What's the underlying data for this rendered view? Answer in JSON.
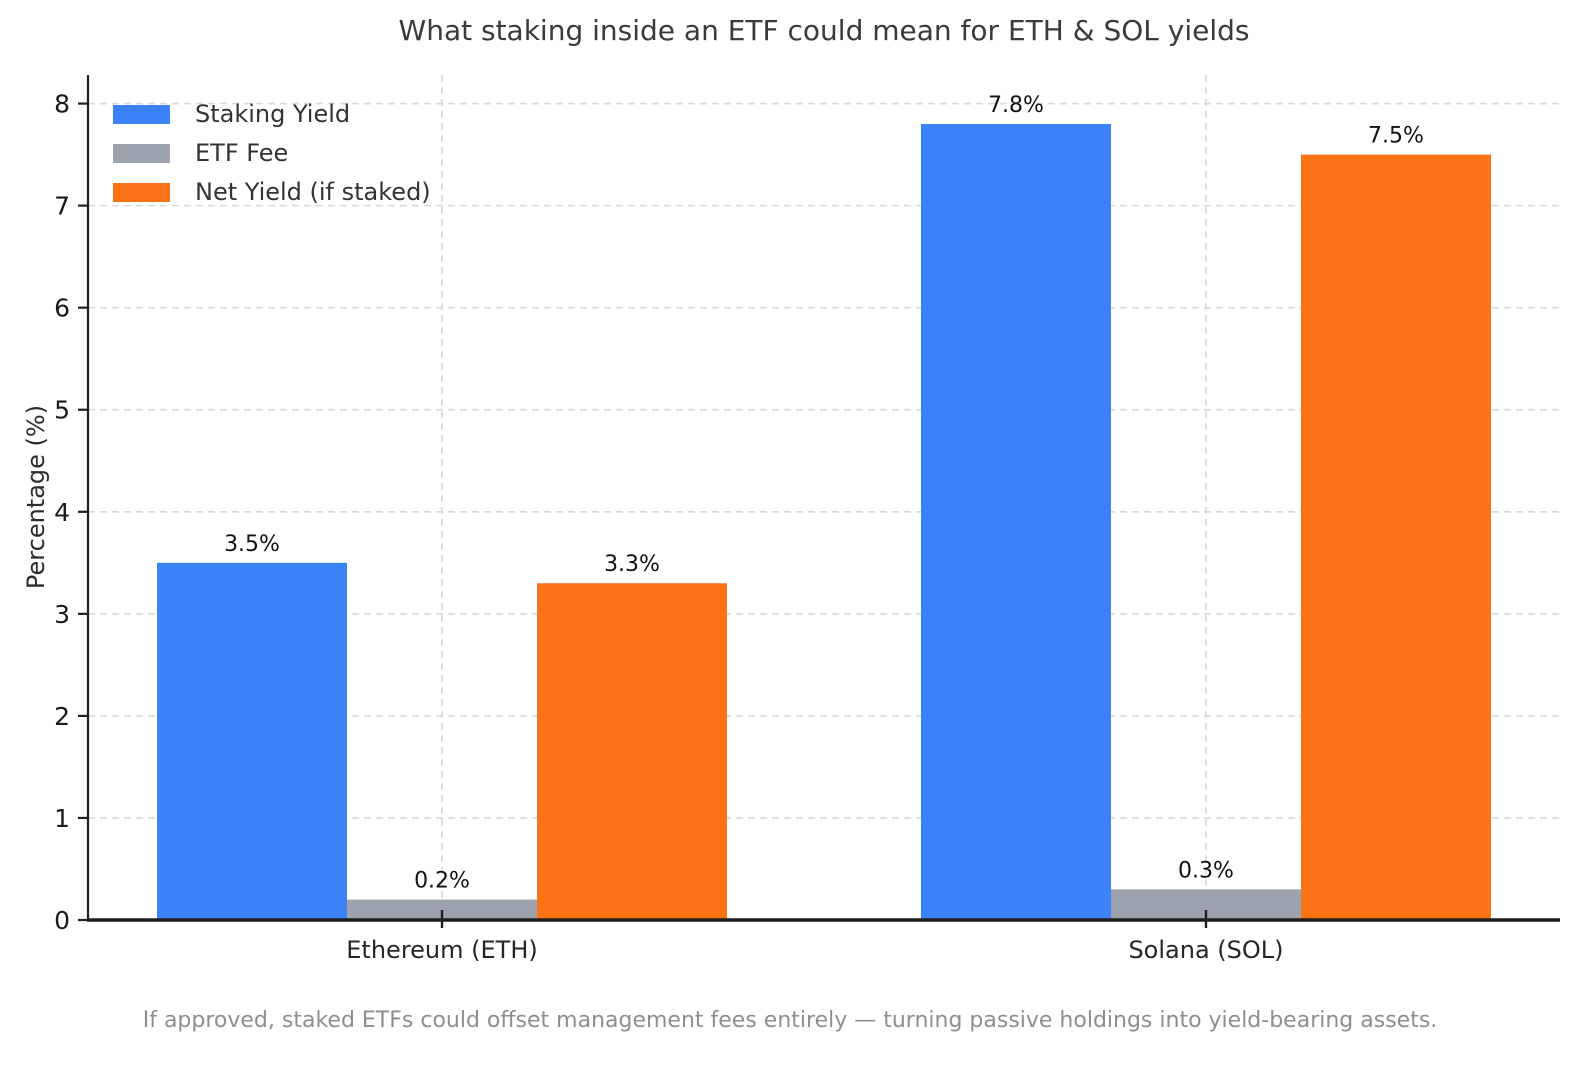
{
  "chart_data": {
    "type": "bar",
    "title": "What staking inside an ETF could mean for ETH & SOL yields",
    "ylabel": "Percentage (%)",
    "xlabel": "",
    "categories": [
      "Ethereum (ETH)",
      "Solana (SOL)"
    ],
    "series": [
      {
        "name": "Staking Yield",
        "color": "#3B82F6",
        "values": [
          3.5,
          7.8
        ],
        "value_labels": [
          "3.5%",
          "7.8%"
        ]
      },
      {
        "name": "ETF Fee",
        "color": "#9CA3AF",
        "values": [
          0.2,
          0.3
        ],
        "value_labels": [
          "0.2%",
          "0.3%"
        ]
      },
      {
        "name": "Net Yield (if staked)",
        "color": "#F97316",
        "values": [
          3.3,
          7.5
        ],
        "value_labels": [
          "3.3%",
          "7.5%"
        ]
      }
    ],
    "ylim": [
      0,
      8.28
    ],
    "yticks": [
      0,
      1,
      2,
      3,
      4,
      5,
      6,
      7,
      8
    ],
    "grid": true,
    "grid_color": "#d9d9d9",
    "legend_position": "upper-left",
    "axis_color": "#1f1f1f",
    "tick_label_color": "#1a1a1a",
    "value_label_color": "#111111"
  },
  "footer": {
    "note": "If approved, staked ETFs could offset management fees entirely — turning passive holdings into yield-bearing assets."
  }
}
